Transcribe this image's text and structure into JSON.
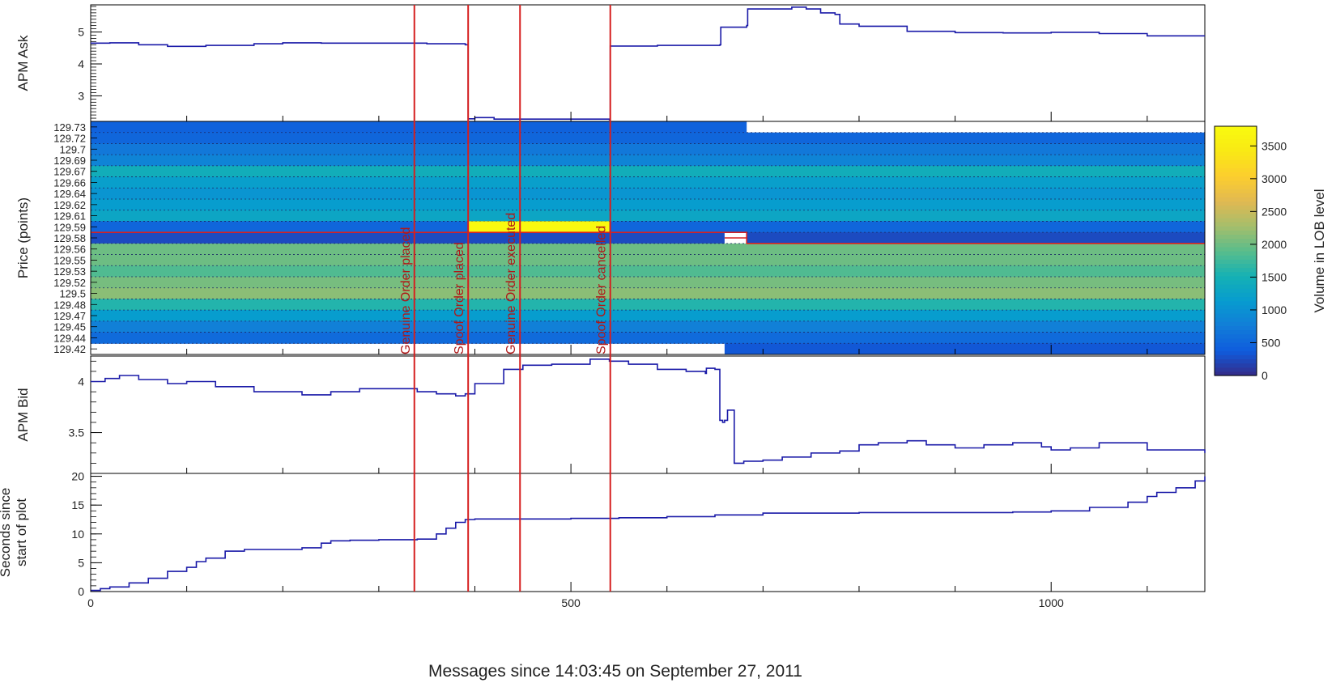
{
  "chart_data": {
    "type": "line",
    "xlabel": "Messages since 14:03:45 on September 27, 2011",
    "xlim": [
      0,
      1160
    ],
    "x_ticks": [
      "0",
      "500",
      "1000"
    ],
    "x_tick_values": [
      0,
      500,
      1000
    ],
    "panels": [
      {
        "id": "ask",
        "type": "line",
        "ylabel": "APM Ask",
        "ylim": [
          2.2,
          5.85
        ],
        "y_ticks": [
          "3",
          "4",
          "5"
        ],
        "y_tick_values": [
          3,
          4,
          5
        ],
        "series": [
          {
            "color": "#1a1aa8",
            "x": [
              0,
              20,
              50,
              80,
              120,
              170,
              200,
              240,
              300,
              350,
              390,
              393,
              400,
              410,
              420,
              540,
              541,
              590,
              655,
              656,
              683,
              684,
              720,
              730,
              745,
              760,
              775,
              780,
              800,
              850,
              900,
              950,
              1000,
              1050,
              1100,
              1160
            ],
            "y": [
              4.65,
              4.66,
              4.6,
              4.55,
              4.58,
              4.63,
              4.66,
              4.65,
              4.65,
              4.63,
              4.6,
              2.28,
              2.32,
              2.32,
              2.27,
              2.25,
              4.56,
              4.58,
              4.6,
              5.15,
              5.2,
              5.72,
              5.72,
              5.78,
              5.72,
              5.6,
              5.55,
              5.25,
              5.18,
              5.02,
              4.98,
              4.97,
              4.99,
              4.95,
              4.88,
              4.88
            ]
          }
        ]
      },
      {
        "id": "lob",
        "type": "heatmap",
        "ylabel": "Price (points)",
        "price_levels": [
          "129.73",
          "129.72",
          "129.7",
          "129.69",
          "129.67",
          "129.66",
          "129.64",
          "129.62",
          "129.61",
          "129.59",
          "129.58",
          "129.56",
          "129.55",
          "129.53",
          "129.52",
          "129.5",
          "129.48",
          "129.47",
          "129.45",
          "129.44",
          "129.42"
        ],
        "colorbar": {
          "label": "Volume in LOB level",
          "range": [
            0,
            3800
          ],
          "ticks": [
            "0",
            "500",
            "1000",
            "1500",
            "2000",
            "2500",
            "3000",
            "3500"
          ],
          "tick_values": [
            0,
            500,
            1000,
            1500,
            2000,
            2500,
            3000,
            3500
          ]
        },
        "cell_volumes": {
          "129.73": 450,
          "129.72": 500,
          "129.7": 700,
          "129.69": 850,
          "129.67": 1450,
          "129.66": 1200,
          "129.64": 1050,
          "129.62": 1150,
          "129.61": 1300,
          "129.59": 500,
          "129.58": 250,
          "129.56": 2000,
          "129.55": 2000,
          "129.53": 1850,
          "129.52": 2050,
          "129.5": 2150,
          "129.48": 1600,
          "129.47": 1150,
          "129.45": 800,
          "129.44": 550,
          "129.42": 350
        },
        "spoof_cell": {
          "price": "129.59",
          "x_range": [
            393,
            540
          ],
          "volume": 3750
        },
        "notes": "Top level 129.73 is empty after x≈683; bottom level 129.42 is populated only from x≈660; level 129.58 dips between x≈660 and x≈683.",
        "best_bid_line": [
          {
            "x": [
              0,
              683
            ],
            "price": "129.58"
          },
          {
            "x": [
              660,
              1160
            ],
            "price": "129.58"
          }
        ]
      },
      {
        "id": "bid",
        "type": "line",
        "ylabel": "APM Bid",
        "ylim": [
          3.1,
          4.25
        ],
        "y_ticks": [
          "3.5",
          "4"
        ],
        "y_tick_values": [
          3.5,
          4
        ],
        "series": [
          {
            "color": "#1a1aa8",
            "x": [
              0,
              15,
              30,
              50,
              80,
              100,
              130,
              170,
              200,
              220,
              250,
              280,
              330,
              340,
              360,
              380,
              390,
              400,
              430,
              450,
              480,
              520,
              540,
              560,
              590,
              620,
              640,
              641,
              650,
              655,
              658,
              660,
              663,
              670,
              680,
              700,
              720,
              750,
              780,
              800,
              820,
              850,
              870,
              900,
              930,
              960,
              990,
              1000,
              1020,
              1050,
              1100,
              1160
            ],
            "y": [
              4.0,
              4.03,
              4.06,
              4.02,
              3.98,
              4.0,
              3.95,
              3.9,
              3.9,
              3.87,
              3.9,
              3.93,
              3.93,
              3.9,
              3.88,
              3.86,
              3.88,
              3.98,
              4.12,
              4.16,
              4.17,
              4.22,
              4.2,
              4.17,
              4.12,
              4.1,
              4.08,
              4.13,
              4.12,
              3.62,
              3.6,
              3.62,
              3.72,
              3.2,
              3.22,
              3.23,
              3.26,
              3.3,
              3.32,
              3.38,
              3.4,
              3.42,
              3.38,
              3.35,
              3.38,
              3.4,
              3.36,
              3.33,
              3.35,
              3.4,
              3.33,
              3.3
            ]
          }
        ]
      },
      {
        "id": "secs",
        "type": "line",
        "ylabel": [
          "Seconds since",
          "start of plot"
        ],
        "ylim": [
          0,
          20.5
        ],
        "y_ticks": [
          "0",
          "5",
          "10",
          "15",
          "20"
        ],
        "y_tick_values": [
          0,
          5,
          10,
          15,
          20
        ],
        "series": [
          {
            "color": "#1a1aa8",
            "x": [
              0,
              10,
              20,
              40,
              60,
              80,
              100,
              110,
              120,
              140,
              160,
              200,
              220,
              240,
              250,
              270,
              300,
              340,
              360,
              370,
              380,
              390,
              400,
              450,
              500,
              550,
              600,
              650,
              700,
              800,
              900,
              960,
              1000,
              1040,
              1080,
              1100,
              1110,
              1130,
              1150,
              1160
            ],
            "y": [
              0.2,
              0.5,
              0.8,
              1.5,
              2.3,
              3.5,
              4.2,
              5.2,
              5.8,
              7.0,
              7.3,
              7.3,
              7.6,
              8.4,
              8.8,
              8.9,
              9.0,
              9.1,
              10.0,
              11.0,
              12.0,
              12.5,
              12.6,
              12.6,
              12.7,
              12.8,
              13.0,
              13.3,
              13.6,
              13.7,
              13.7,
              13.8,
              14.0,
              14.6,
              15.5,
              16.5,
              17.2,
              18.0,
              19.2,
              20.0
            ]
          }
        ]
      }
    ],
    "events": [
      {
        "label": "Genuine Order placed",
        "x": 337
      },
      {
        "label": "Spoof Order placed",
        "x": 393
      },
      {
        "label": "Genuine Order executed",
        "x": 447
      },
      {
        "label": "Spoof Order cancelled",
        "x": 541
      }
    ],
    "event_line_color": "#d62020"
  }
}
